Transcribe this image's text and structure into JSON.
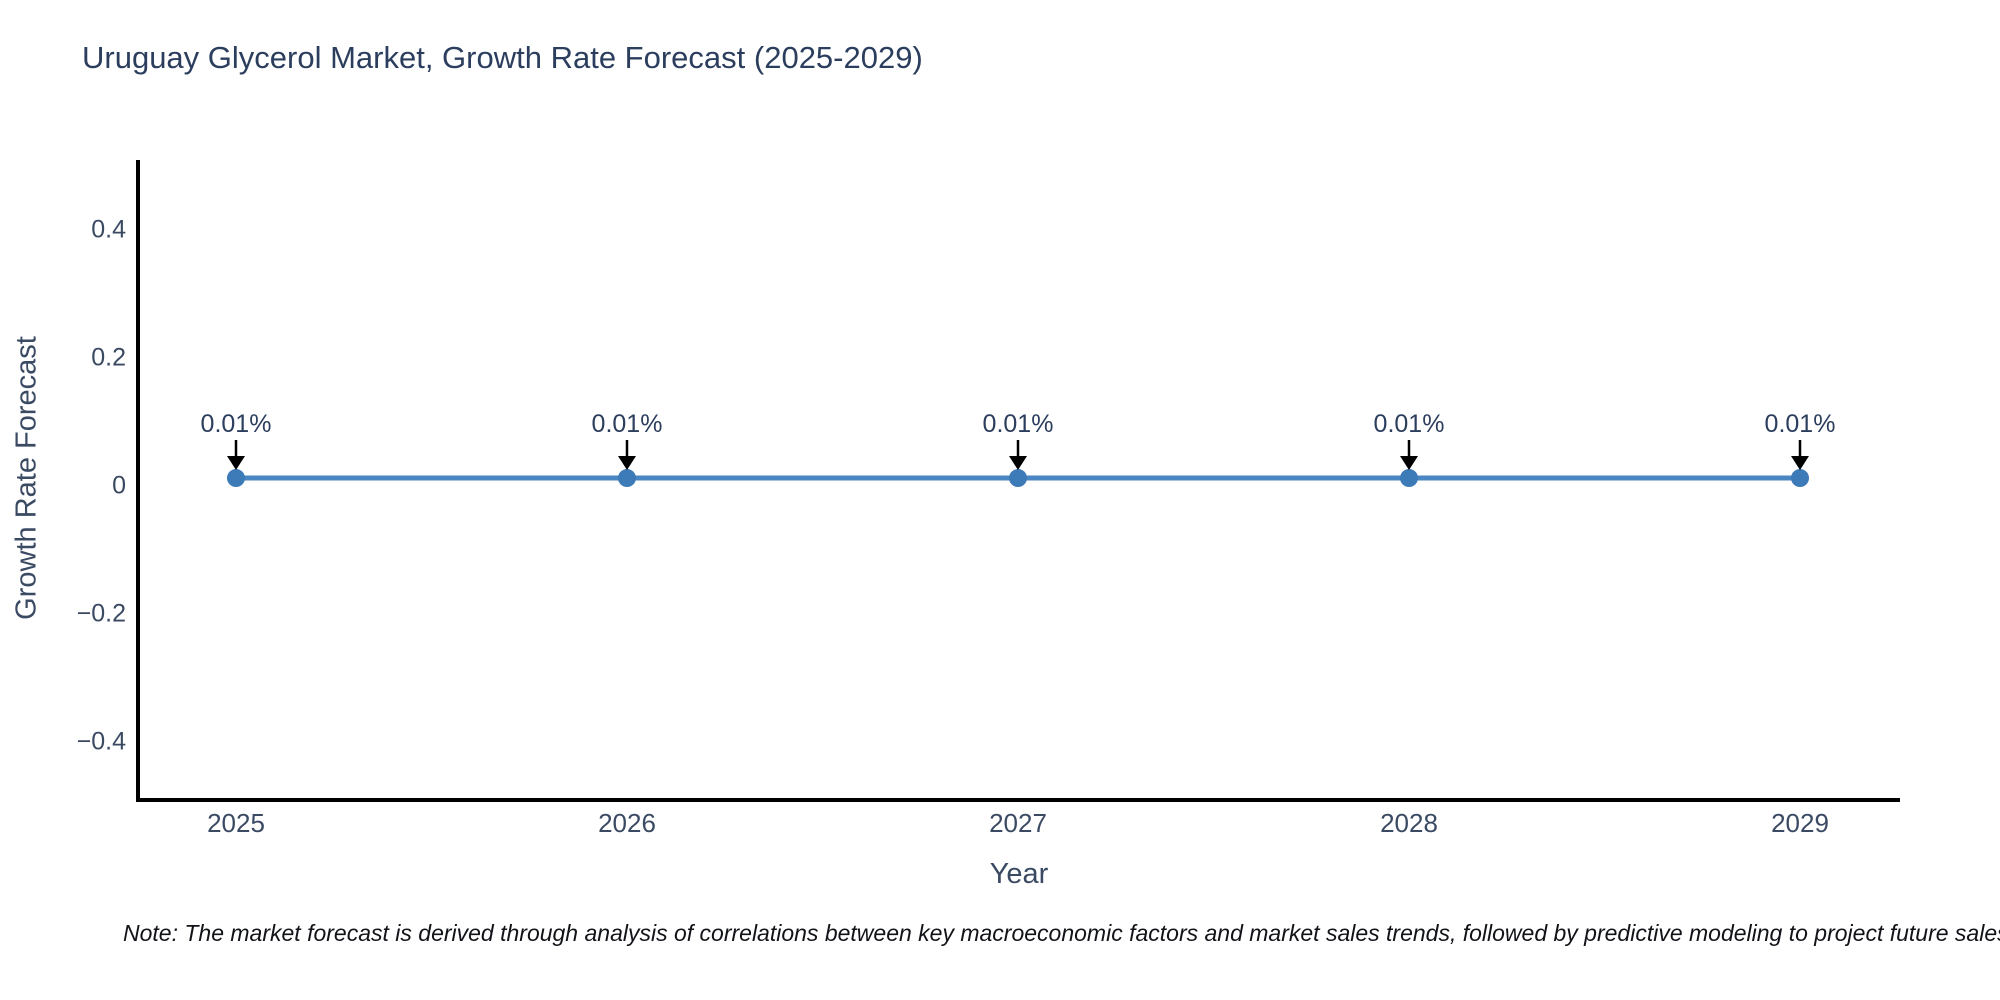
{
  "note": "Note: The market forecast is derived through analysis of correlations between key macroeconomic factors and market sales trends, followed by predictive modeling to project future sales.",
  "chart_data": {
    "type": "line",
    "title": "Uruguay Glycerol Market, Growth Rate Forecast (2025-2029)",
    "xlabel": "Year",
    "ylabel": "Growth Rate Forecast",
    "categories": [
      "2025",
      "2026",
      "2027",
      "2028",
      "2029"
    ],
    "series": [
      {
        "name": "Growth Rate Forecast",
        "values": [
          0.01,
          0.01,
          0.01,
          0.01,
          0.01
        ]
      }
    ],
    "point_labels": [
      "0.01%",
      "0.01%",
      "0.01%",
      "0.01%",
      "0.01%"
    ],
    "ylim": [
      -0.49,
      0.507
    ],
    "yticks": [
      0.4,
      0.2,
      0,
      -0.2,
      -0.4
    ],
    "grid": false,
    "legend": false,
    "colors": {
      "line": "#4a86c2",
      "marker": "#3c7ab8",
      "arrow": "#000000",
      "axis": "#000000",
      "tick_label": "#3b4a63",
      "annotation_text": "#2c3e5d",
      "title_text": "#2c3e5d",
      "background": "#ffffff"
    }
  }
}
